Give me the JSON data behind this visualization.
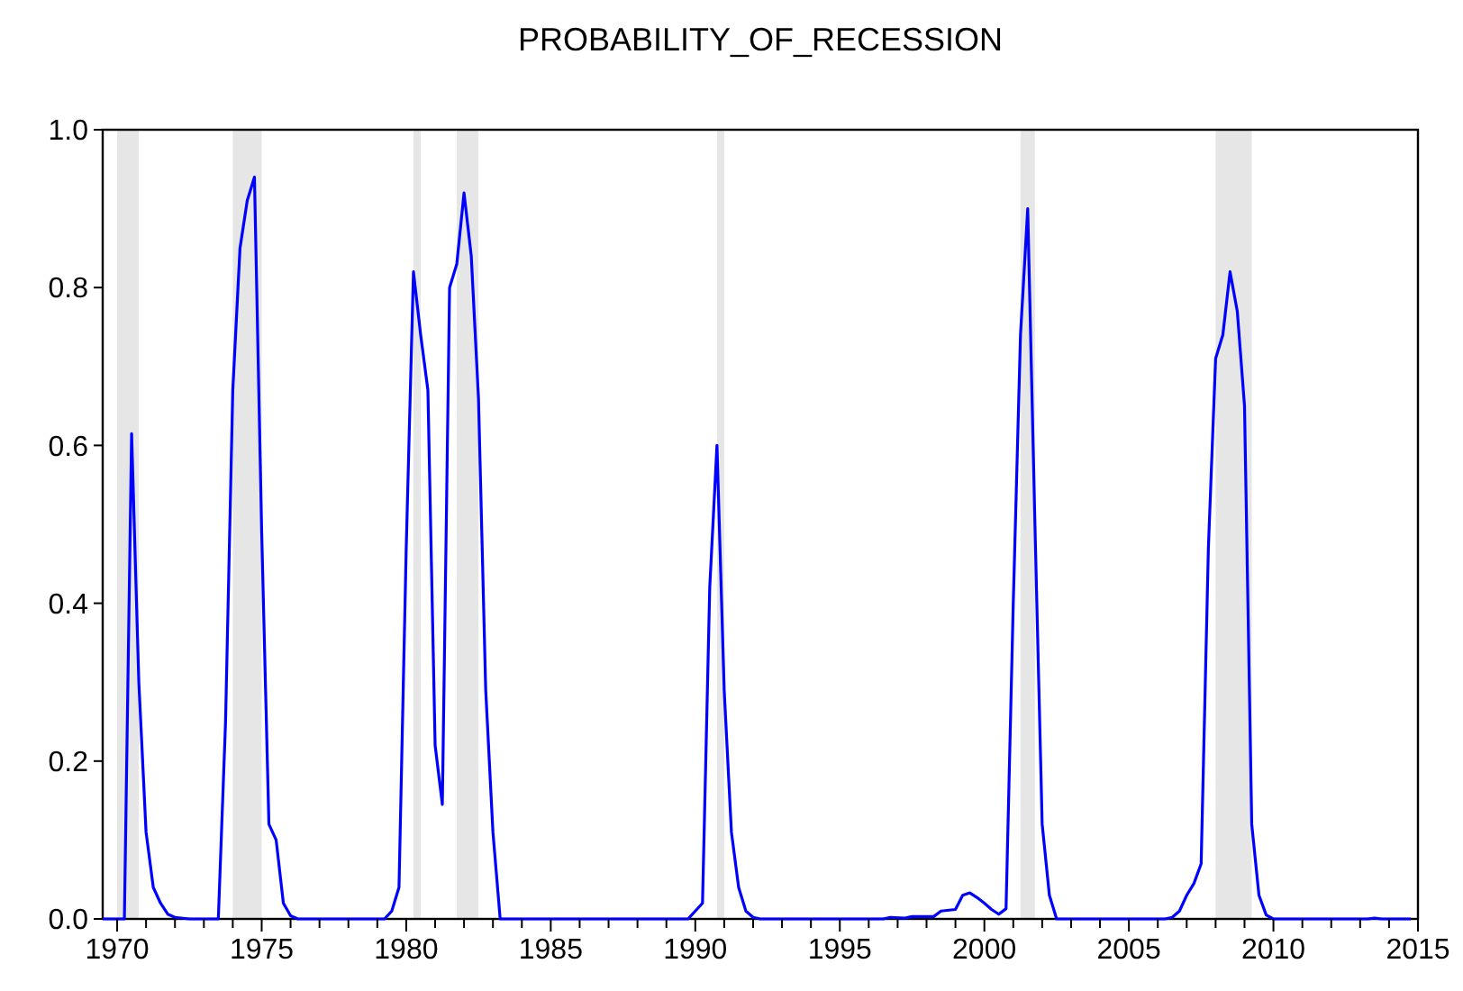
{
  "chart_data": {
    "type": "line",
    "title": "PROBABILITY_OF_RECESSION",
    "x": [
      1969.5,
      1970.25,
      1970.5,
      1970.75,
      1971,
      1971.25,
      1971.5,
      1971.75,
      1972,
      1972.5,
      1973.5,
      1973.75,
      1974,
      1974.25,
      1974.5,
      1974.75,
      1975,
      1975.25,
      1975.5,
      1975.75,
      1976,
      1976.25,
      1979.25,
      1979.5,
      1979.75,
      1980,
      1980.25,
      1980.5,
      1980.75,
      1981,
      1981.25,
      1981.5,
      1981.75,
      1982,
      1982.25,
      1982.5,
      1982.75,
      1983,
      1983.25,
      1989.75,
      1990.25,
      1990.5,
      1990.75,
      1991,
      1991.25,
      1991.5,
      1991.75,
      1992,
      1992.25,
      1996.5,
      1996.75,
      1997.25,
      1997.5,
      1998,
      1998.25,
      1998.5,
      1999,
      1999.25,
      1999.5,
      1999.75,
      2000,
      2000.25,
      2000.5,
      2000.75,
      2001,
      2001.25,
      2001.5,
      2001.75,
      2002,
      2002.25,
      2002.5,
      2006.25,
      2006.5,
      2006.75,
      2007,
      2007.25,
      2007.5,
      2007.75,
      2008,
      2008.25,
      2008.5,
      2008.75,
      2009,
      2009.25,
      2009.5,
      2009.75,
      2010,
      2013.25,
      2013.5,
      2013.75,
      2014.75
    ],
    "values": [
      0,
      0,
      0.615,
      0.3,
      0.11,
      0.04,
      0.02,
      0.006,
      0.002,
      0,
      0,
      0.25,
      0.67,
      0.85,
      0.91,
      0.94,
      0.49,
      0.12,
      0.1,
      0.02,
      0.004,
      0,
      0,
      0.01,
      0.04,
      0.47,
      0.82,
      0.74,
      0.67,
      0.22,
      0.145,
      0.8,
      0.83,
      0.92,
      0.84,
      0.66,
      0.29,
      0.11,
      0,
      0,
      0.02,
      0.42,
      0.6,
      0.29,
      0.11,
      0.04,
      0.01,
      0.002,
      0,
      0,
      0.002,
      0.001,
      0.003,
      0.003,
      0.003,
      0.01,
      0.012,
      0.03,
      0.033,
      0.027,
      0.02,
      0.012,
      0.006,
      0.013,
      0.4,
      0.74,
      0.9,
      0.5,
      0.12,
      0.03,
      0,
      0,
      0.002,
      0.01,
      0.03,
      0.045,
      0.07,
      0.47,
      0.71,
      0.74,
      0.82,
      0.77,
      0.65,
      0.12,
      0.03,
      0.005,
      0,
      0,
      0.001,
      0,
      0
    ],
    "color": "#0000ff",
    "xlim": [
      1969.5,
      2015
    ],
    "xticks": [
      1970,
      {
        "value": 1971,
        "label": null
      },
      {
        "value": 1972,
        "label": null
      },
      {
        "value": 1973,
        "label": null
      },
      {
        "value": 1974,
        "label": null
      },
      1975,
      {
        "value": 1976,
        "label": null
      },
      {
        "value": 1977,
        "label": null
      },
      {
        "value": 1978,
        "label": null
      },
      {
        "value": 1979,
        "label": null
      },
      1980,
      {
        "value": 1981,
        "label": null
      },
      {
        "value": 1982,
        "label": null
      },
      {
        "value": 1983,
        "label": null
      },
      {
        "value": 1984,
        "label": null
      },
      1985,
      {
        "value": 1986,
        "label": null
      },
      {
        "value": 1987,
        "label": null
      },
      {
        "value": 1988,
        "label": null
      },
      {
        "value": 1989,
        "label": null
      },
      1990,
      {
        "value": 1991,
        "label": null
      },
      {
        "value": 1992,
        "label": null
      },
      {
        "value": 1993,
        "label": null
      },
      {
        "value": 1994,
        "label": null
      },
      1995,
      {
        "value": 1996,
        "label": null
      },
      {
        "value": 1997,
        "label": null
      },
      {
        "value": 1998,
        "label": null
      },
      {
        "value": 1999,
        "label": null
      },
      2000,
      {
        "value": 2001,
        "label": null
      },
      {
        "value": 2002,
        "label": null
      },
      {
        "value": 2003,
        "label": null
      },
      {
        "value": 2004,
        "label": null
      },
      2005,
      {
        "value": 2006,
        "label": null
      },
      {
        "value": 2007,
        "label": null
      },
      {
        "value": 2008,
        "label": null
      },
      {
        "value": 2009,
        "label": null
      },
      2010,
      {
        "value": 2011,
        "label": null
      },
      {
        "value": 2012,
        "label": null
      },
      {
        "value": 2013,
        "label": null
      },
      {
        "value": 2014,
        "label": null
      },
      2015
    ],
    "ylim": [
      0,
      1
    ],
    "yticks": [
      {
        "value": 0,
        "label": "0.0"
      },
      {
        "value": 0.2,
        "label": "0.2"
      },
      {
        "value": 0.4,
        "label": "0.4"
      },
      {
        "value": 0.6,
        "label": "0.6"
      },
      {
        "value": 0.8,
        "label": "0.8"
      },
      {
        "value": 1,
        "label": "1.0"
      }
    ],
    "bands": [
      {
        "axis": "x",
        "from": 1970,
        "to": 1970.75,
        "color": "#e6e6e6"
      },
      {
        "axis": "x",
        "from": 1974,
        "to": 1975,
        "color": "#e6e6e6"
      },
      {
        "axis": "x",
        "from": 1980.25,
        "to": 1980.5,
        "color": "#e6e6e6"
      },
      {
        "axis": "x",
        "from": 1981.75,
        "to": 1982.5,
        "color": "#e6e6e6"
      },
      {
        "axis": "x",
        "from": 1990.75,
        "to": 1991,
        "color": "#e6e6e6"
      },
      {
        "axis": "x",
        "from": 2001.25,
        "to": 2001.75,
        "color": "#e6e6e6"
      },
      {
        "axis": "x",
        "from": 2008,
        "to": 2009.25,
        "color": "#e6e6e6"
      }
    ],
    "grid": false
  }
}
